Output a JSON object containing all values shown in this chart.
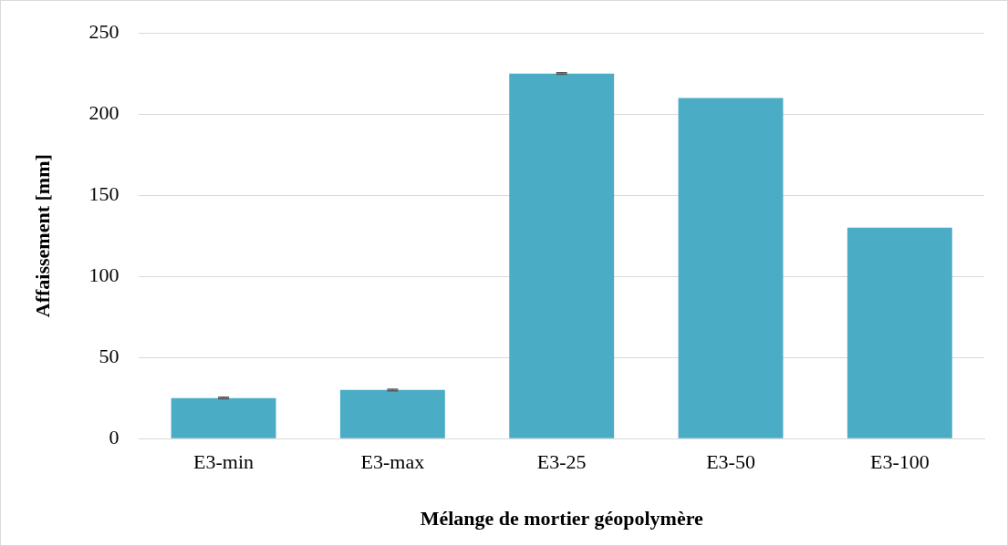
{
  "chart_data": {
    "type": "bar",
    "xlabel": "Mélange de mortier géopolymère",
    "ylabel": "Affaissement [mm]",
    "categories": [
      "E3-min",
      "E3-max",
      "E3-25",
      "E3-50",
      "E3-100"
    ],
    "values": [
      25,
      30,
      225,
      210,
      130
    ],
    "errors": [
      0.5,
      0.5,
      0.5,
      null,
      null
    ],
    "color": "#4bacc6",
    "ylim": [
      0,
      250
    ],
    "yticks": [
      0,
      50,
      100,
      150,
      200,
      250
    ],
    "grid": "y"
  }
}
